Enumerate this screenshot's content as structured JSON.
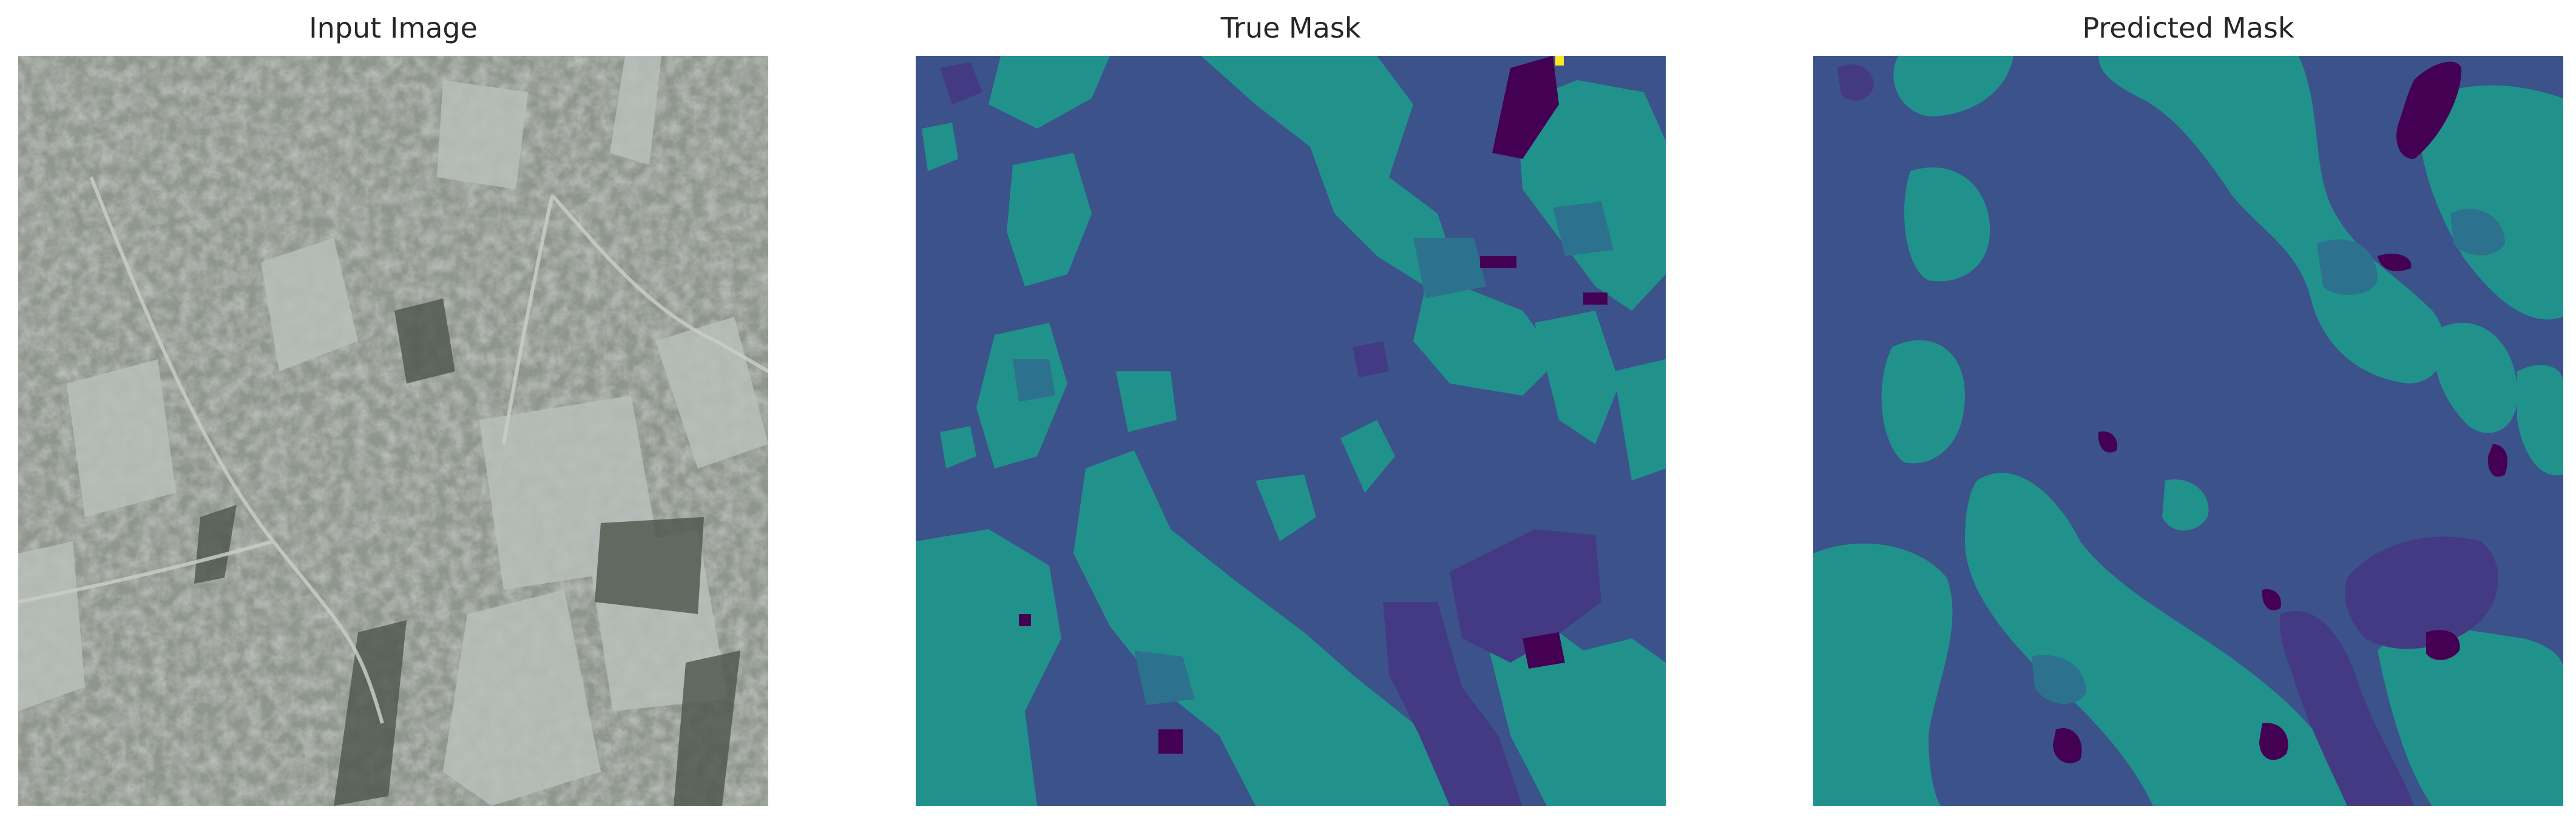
{
  "panels": [
    {
      "title": "Input Image",
      "kind": "satellite"
    },
    {
      "title": "True Mask",
      "kind": "mask-true"
    },
    {
      "title": "Predicted Mask",
      "kind": "mask-predicted"
    }
  ],
  "palette": {
    "background": "#3b528b",
    "vegetation": "#21918c",
    "transition": "#2c728e",
    "dark_region": "#443a83",
    "deep": "#440154",
    "highlight": "#fde725",
    "satellite_base": "#8f968d",
    "satellite_light": "#b9bfbb",
    "satellite_dark": "#4d554b"
  }
}
